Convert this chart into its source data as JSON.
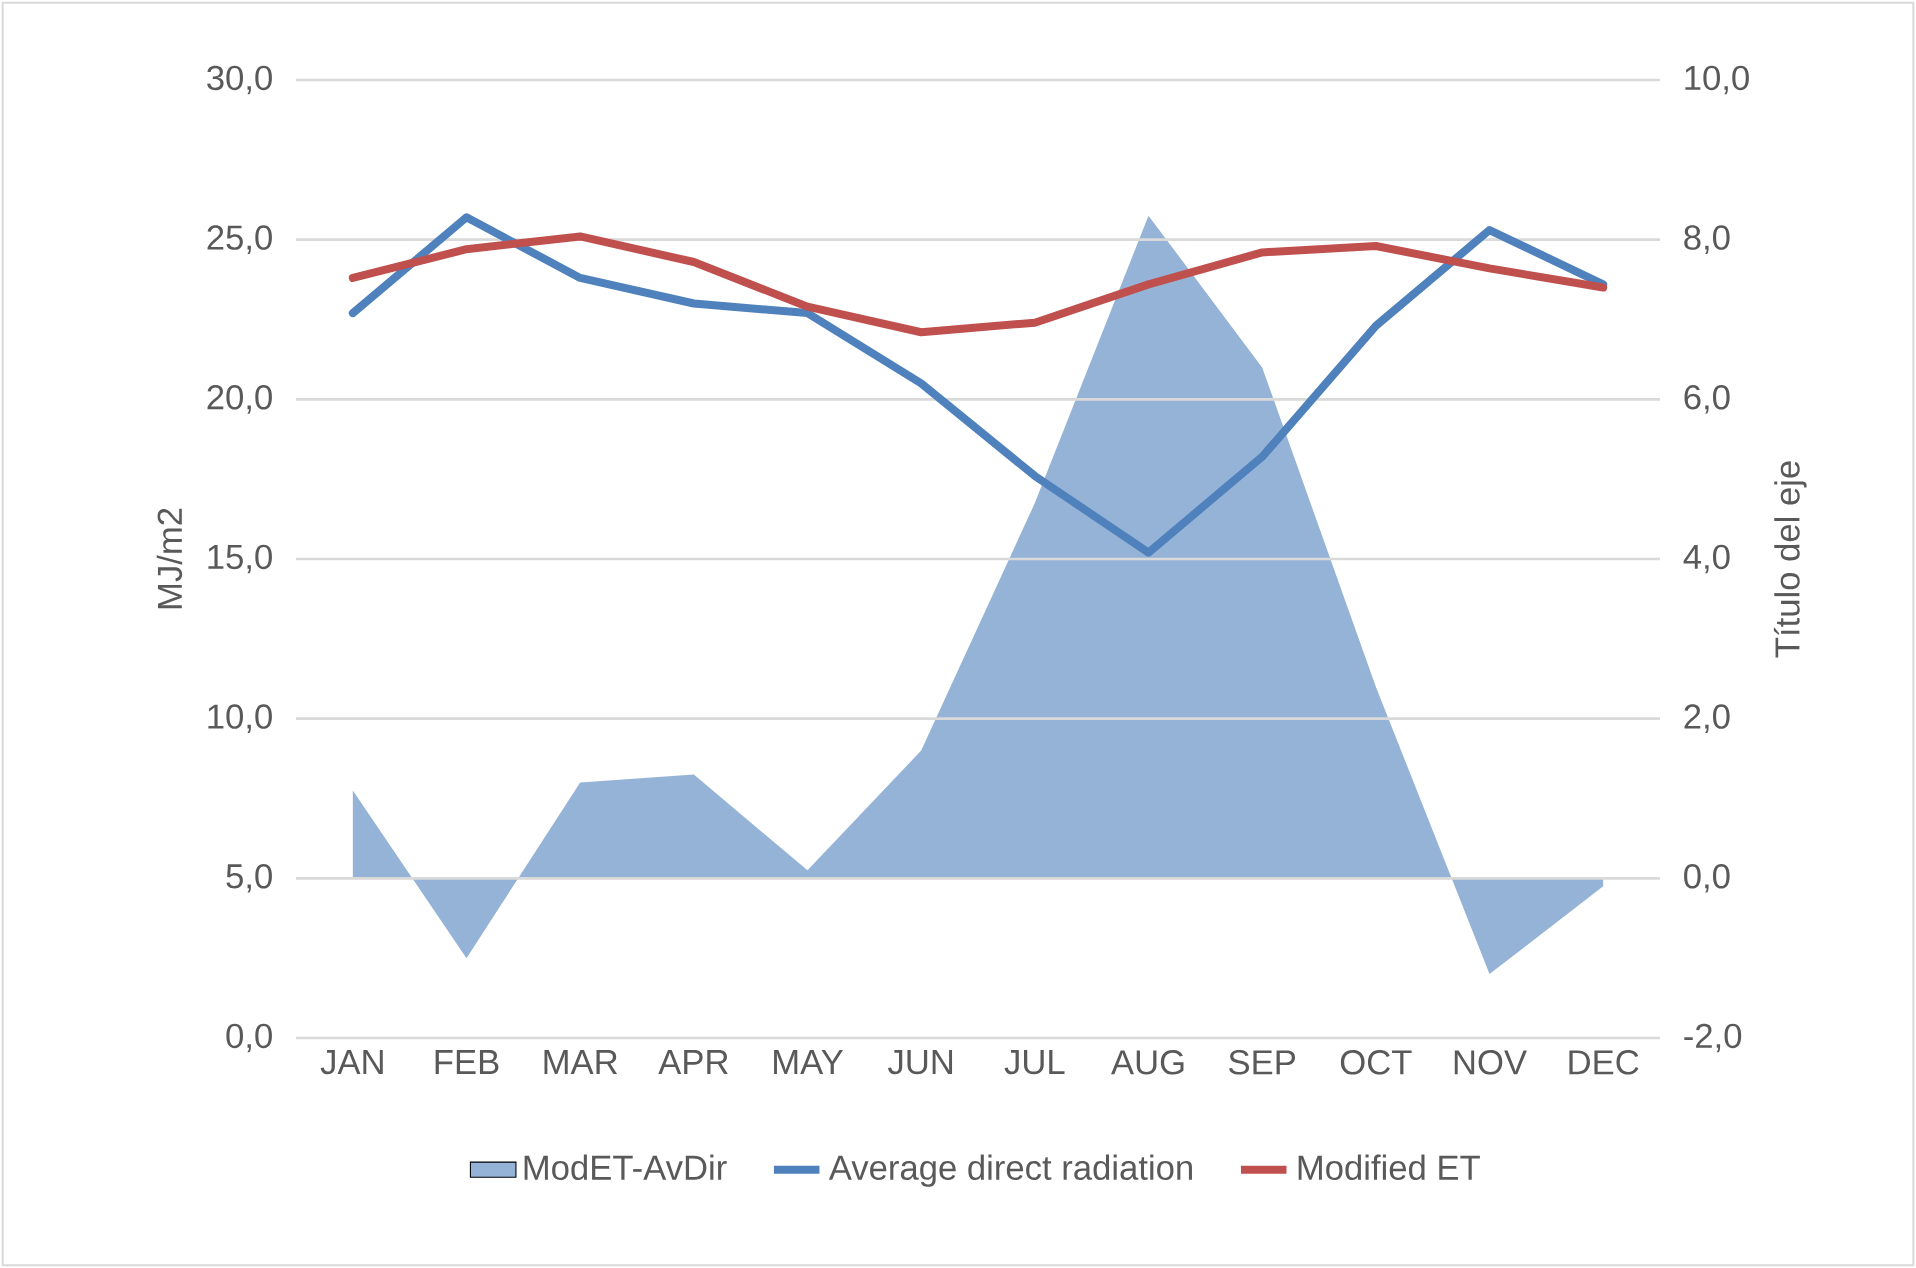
{
  "chart_data": {
    "type": "line",
    "categories": [
      "JAN",
      "FEB",
      "MAR",
      "APR",
      "MAY",
      "JUN",
      "JUL",
      "AUG",
      "SEP",
      "OCT",
      "NOV",
      "DEC"
    ],
    "series": [
      {
        "name": "ModET-AvDir",
        "type": "area",
        "axis": "y2",
        "color": "#95b3d7",
        "values": [
          1.1,
          -1.0,
          1.2,
          1.3,
          0.1,
          1.6,
          4.7,
          8.3,
          6.4,
          2.4,
          -1.2,
          -0.1
        ]
      },
      {
        "name": "Average direct radiation",
        "color": "#4f81bd",
        "values": [
          22.7,
          25.7,
          23.8,
          23.0,
          22.7,
          20.5,
          17.6,
          15.2,
          18.2,
          22.3,
          25.3,
          23.6
        ]
      },
      {
        "name": "Modified ET",
        "color": "#c0504d",
        "values": [
          23.8,
          24.7,
          25.1,
          24.3,
          22.9,
          22.1,
          22.4,
          23.6,
          24.6,
          24.8,
          24.1,
          23.5
        ]
      }
    ],
    "ylabel": "MJ/m2",
    "y2label": "Título del eje",
    "ylim": [
      0,
      30
    ],
    "yticks": [
      {
        "value": 0,
        "label": "0,0"
      },
      {
        "value": 5,
        "label": "5,0"
      },
      {
        "value": 10,
        "label": "10,0"
      },
      {
        "value": 15,
        "label": "15,0"
      },
      {
        "value": 20,
        "label": "20,0"
      },
      {
        "value": 25,
        "label": "25,0"
      },
      {
        "value": 30,
        "label": "30,0"
      }
    ],
    "y2lim": [
      -2,
      10
    ],
    "y2ticks": [
      {
        "value": -2,
        "label": "-2,0"
      },
      {
        "value": 0,
        "label": "0,0"
      },
      {
        "value": 2,
        "label": "2,0"
      },
      {
        "value": 4,
        "label": "4,0"
      },
      {
        "value": 6,
        "label": "6,0"
      },
      {
        "value": 8,
        "label": "8,0"
      },
      {
        "value": 10,
        "label": "10,0"
      }
    ],
    "grid": "y",
    "legend": "bottom",
    "marker": "none",
    "line_style": "solid"
  }
}
